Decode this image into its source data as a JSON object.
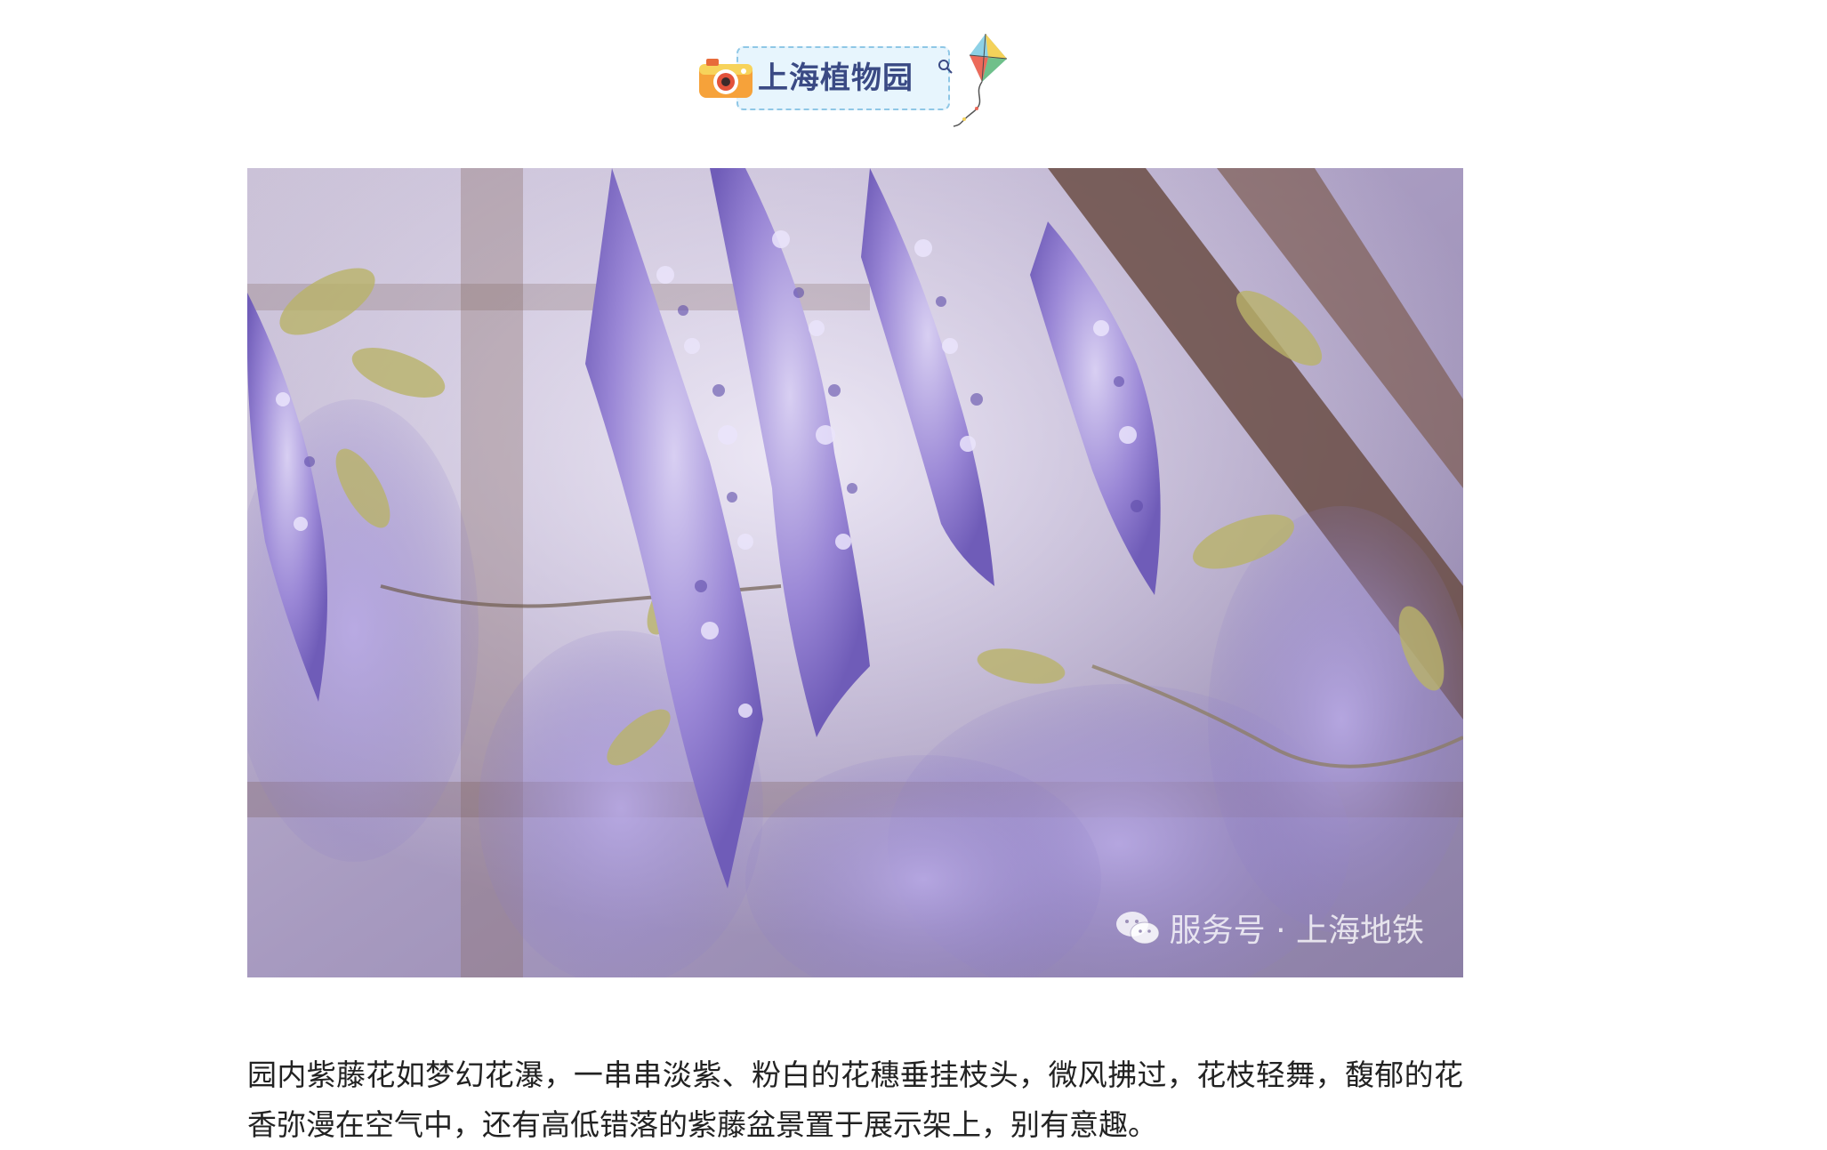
{
  "header": {
    "badge_title": "上海植物园",
    "camera_icon": "camera-icon",
    "search_icon": "search-icon",
    "kite_icon": "kite-icon"
  },
  "photo": {
    "subject": "wisteria-flowers-photo",
    "watermark_icon": "wechat-icon",
    "watermark_text": "服务号 · 上海地铁"
  },
  "caption": {
    "text": "园内紫藤花如梦幻花瀑，一串串淡紫、粉白的花穗垂挂枝头，微风拂过，花枝轻舞，馥郁的花香弥漫在空气中，还有高低错落的紫藤盆景置于展示架上，别有意趣。"
  },
  "colors": {
    "badge_bg": "#e7f5fd",
    "badge_border": "#8fc7e6",
    "badge_text": "#3a4a84",
    "wisteria": "#8c7bd0",
    "caption_text": "#222222"
  }
}
